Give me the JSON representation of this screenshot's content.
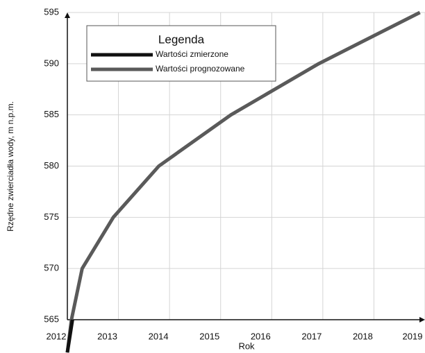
{
  "chart_data": {
    "type": "line",
    "x_label": "Rok",
    "y_label": "Rzędne zwierciadła wody, m n.p.m.",
    "legend_title": "Legenda",
    "legend": "top-left",
    "grid": true,
    "xlim": [
      2012,
      2019
    ],
    "xticks": [
      2012,
      2013,
      2014,
      2015,
      2016,
      2017,
      2018,
      2019
    ],
    "ylim": [
      565,
      595
    ],
    "yticks": [
      565,
      570,
      575,
      580,
      585,
      590,
      595
    ],
    "series": [
      {
        "name": "Wartości zmierzone",
        "color": "#111111",
        "x": [
          2012.0,
          2012.1
        ],
        "values": [
          561.8,
          565
        ]
      },
      {
        "name": "Wartości prognozowane",
        "color": "#5a5a5a",
        "x": [
          2012.0,
          2012.08,
          2012.29,
          2012.9,
          2013.79,
          2015.2,
          2016.92,
          2018.9
        ],
        "values": [
          561.8,
          565,
          570,
          575,
          580,
          585,
          590,
          595
        ]
      }
    ]
  }
}
